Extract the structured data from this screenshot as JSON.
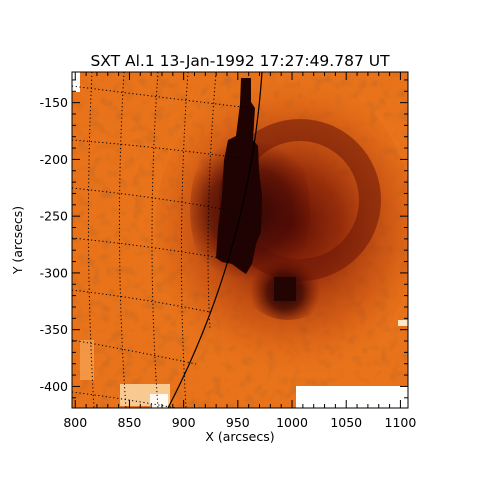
{
  "title": "SXT Al.1 13-Jan-1992 17:27:49.787 UT",
  "xlabel": "X (arcsecs)",
  "ylabel": "Y (arcsecs)",
  "x_ticks": [
    "800",
    "850",
    "900",
    "950",
    "1000",
    "1050",
    "1100"
  ],
  "y_ticks": [
    "-150",
    "-200",
    "-250",
    "-300",
    "-350",
    "-400"
  ],
  "x_range": [
    797,
    1107
  ],
  "y_range": [
    -419,
    -123
  ],
  "colors": {
    "background_low": "#f07818",
    "emission_high": "#2a0503",
    "frame": "#000000"
  }
}
